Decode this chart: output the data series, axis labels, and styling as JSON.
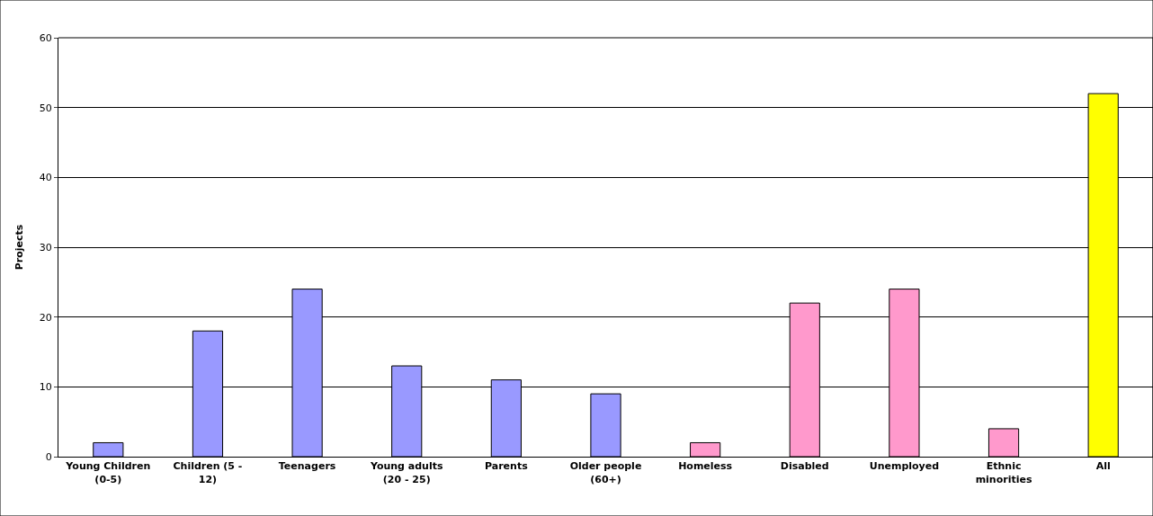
{
  "chart_data": {
    "type": "bar",
    "ylabel": "Projects",
    "categories": [
      "Young Children (0-5)",
      "Children (5 - 12)",
      "Teenagers",
      "Young adults (20 - 25)",
      "Parents",
      "Older people (60+)",
      "Homeless",
      "Disabled",
      "Unemployed",
      "Ethnic minorities",
      "All"
    ],
    "values": [
      2,
      18,
      24,
      13,
      11,
      9,
      2,
      22,
      24,
      4,
      52
    ],
    "colors": [
      "#9999ff",
      "#9999ff",
      "#9999ff",
      "#9999ff",
      "#9999ff",
      "#9999ff",
      "#ff99cc",
      "#ff99cc",
      "#ff99cc",
      "#ff99cc",
      "#ffff00"
    ],
    "ylim": [
      0,
      60
    ],
    "yticks": [
      0,
      10,
      20,
      30,
      40,
      50,
      60
    ],
    "grid": "y"
  }
}
